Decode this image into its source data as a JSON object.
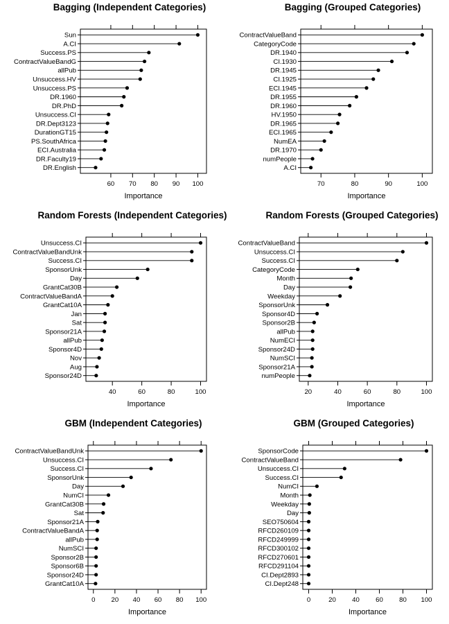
{
  "chart_data": [
    {
      "type": "dot",
      "title": "Bagging (Independent Categories)",
      "xlabel": "Importance",
      "xlim": [
        46,
        104
      ],
      "xticks": [
        60,
        70,
        80,
        90,
        100
      ],
      "categories": [
        "Sun",
        "A.CI",
        "Success.PS",
        "ContractValueBandG",
        "allPub",
        "Unsuccess.HV",
        "Unsuccess.PS",
        "DR.1960",
        "DR.PhD",
        "Unsuccess.CI",
        "DR.Dept3123",
        "DurationGT15",
        "PS.SouthAfrica",
        "ECI.Australia",
        "DR.Faculty19",
        "DR.English"
      ],
      "values": [
        100,
        91.5,
        77.5,
        75.5,
        74,
        73.5,
        67.5,
        66,
        65,
        59,
        58.5,
        58,
        57.5,
        57,
        55.5,
        53
      ]
    },
    {
      "type": "dot",
      "title": "Bagging (Grouped Categories)",
      "xlabel": "Importance",
      "xlim": [
        64,
        103
      ],
      "xticks": [
        70,
        80,
        90,
        100
      ],
      "categories": [
        "ContractValueBand",
        "CategoryCode",
        "DR.1940",
        "CI.1930",
        "DR.1945",
        "CI.1925",
        "ECI.1945",
        "DR.1955",
        "DR.1960",
        "HV.1950",
        "DR.1965",
        "ECI.1965",
        "NumEA",
        "DR.1970",
        "numPeople",
        "A.CI"
      ],
      "values": [
        100,
        97.5,
        95.5,
        91,
        87,
        85.5,
        83.5,
        80.5,
        78.5,
        75.5,
        75,
        73,
        71,
        70,
        67.5,
        67
      ]
    },
    {
      "type": "dot",
      "title": "Random Forests (Independent Categories)",
      "xlabel": "Importance",
      "xlim": [
        22,
        104
      ],
      "xticks": [
        40,
        60,
        80,
        100
      ],
      "categories": [
        "Unsuccess.CI",
        "ContractValueBandUnk",
        "Success.CI",
        "SponsorUnk",
        "Day",
        "GrantCat30B",
        "ContractValueBandA",
        "GrantCat10A",
        "Jan",
        "Sat",
        "Sponsor21A",
        "allPub",
        "Sponsor4D",
        "Nov",
        "Aug",
        "Sponsor24D"
      ],
      "values": [
        100,
        94,
        94,
        64,
        57,
        43,
        40,
        37,
        35,
        35,
        34.5,
        33,
        32.5,
        31,
        29.5,
        29
      ]
    },
    {
      "type": "dot",
      "title": "Random Forests (Grouped Categories)",
      "xlabel": "Importance",
      "xlim": [
        14,
        104
      ],
      "xticks": [
        20,
        40,
        60,
        80,
        100
      ],
      "categories": [
        "ContractValueBand",
        "Unsuccess.CI",
        "Success.CI",
        "CategoryCode",
        "Month",
        "Day",
        "Weekday",
        "SponsorUnk",
        "Sponsor4D",
        "Sponsor2B",
        "allPub",
        "NumECI",
        "Sponsor24D",
        "NumSCI",
        "Sponsor21A",
        "numPeople"
      ],
      "values": [
        100,
        84,
        80,
        53.5,
        49,
        48.5,
        41.5,
        33,
        26,
        24,
        23,
        23,
        23,
        22.5,
        22.5,
        21
      ]
    },
    {
      "type": "dot",
      "title": "GBM (Independent Categories)",
      "xlabel": "Importance",
      "xlim": [
        -5,
        105
      ],
      "xticks": [
        0,
        20,
        40,
        60,
        80,
        100
      ],
      "categories": [
        "ContractValueBandUnk",
        "Unsuccess.CI",
        "Success.CI",
        "SponsorUnk",
        "Day",
        "NumCI",
        "GrantCat30B",
        "Sat",
        "Sponsor21A",
        "ContractValueBandA",
        "allPub",
        "NumSCI",
        "Sponsor2B",
        "Sponsor6B",
        "Sponsor24D",
        "GrantCat10A"
      ],
      "values": [
        100,
        72,
        53.5,
        35,
        27.5,
        14,
        9.5,
        9,
        4,
        3.5,
        3.5,
        2.5,
        2.5,
        2.5,
        2.5,
        2
      ]
    },
    {
      "type": "dot",
      "title": "GBM (Grouped Categories)",
      "xlabel": "Importance",
      "xlim": [
        -5,
        105
      ],
      "xticks": [
        0,
        20,
        40,
        60,
        80,
        100
      ],
      "categories": [
        "SponsorCode",
        "ContractValueBand",
        "Unsuccess.CI",
        "Success.CI",
        "NumCI",
        "Month",
        "Weekday",
        "Day",
        "SEO750604",
        "RFCD260109",
        "RFCD249999",
        "RFCD300102",
        "RFCD270601",
        "RFCD291104",
        "CI.Dept2893",
        "CI.Dept248"
      ],
      "values": [
        100,
        78,
        30.5,
        27.5,
        7,
        1,
        0.5,
        0.5,
        0,
        0,
        0,
        0,
        0,
        0,
        0,
        0
      ]
    }
  ]
}
